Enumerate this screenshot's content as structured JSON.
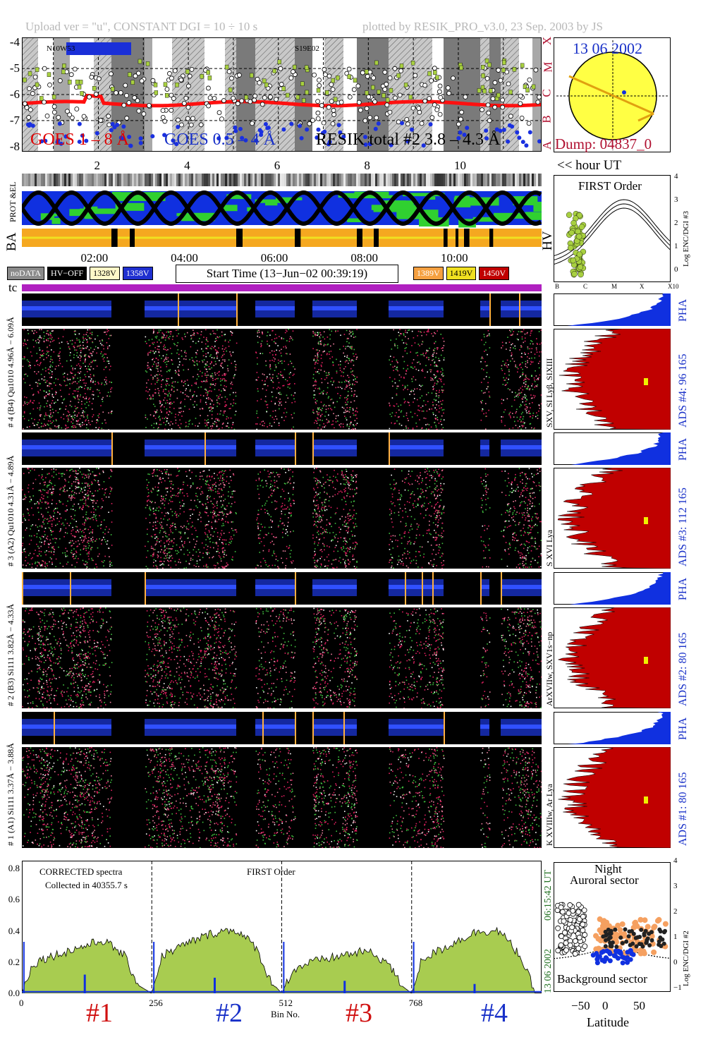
{
  "header": {
    "left": "Upload ver = \"u\", CONSTANT  DGI =  10 ÷  10 s",
    "right": "plotted by RESIK_PRO_v3.0, 23 Sep. 2003 by JS"
  },
  "goes": {
    "y_ticks": [
      "-4",
      "-5",
      "-6",
      "-7",
      "-8"
    ],
    "classes": [
      "X",
      "M",
      "C",
      "B",
      "A"
    ],
    "label_goes18": "GOES 1 – 8 Å",
    "label_goes054": "GOES 0.5 – 4 Å",
    "label_resik": "RESIK total #2  3.8 – 4.3 Å",
    "tag1": "N10W53",
    "tag2": "S19E02",
    "hour_ticks": [
      "2",
      "4",
      "6",
      "8",
      "10"
    ],
    "hour_label": "<< hour UT"
  },
  "sun": {
    "date": "13 06 2002",
    "dump": "Dump: 04837_0"
  },
  "orbit": {
    "left_labels": [
      "BA",
      "PROT &EL"
    ],
    "hv": "HV",
    "time_ticks": [
      "02:00",
      "04:00",
      "06:00",
      "08:00",
      "10:00"
    ]
  },
  "legend": {
    "items": [
      {
        "label": "noDATA",
        "bg": "#8a8a8a",
        "fg": "#fff"
      },
      {
        "label": "HV−OFF",
        "bg": "#000",
        "fg": "#fff"
      },
      {
        "label": "1328V",
        "bg": "#fff8c8",
        "fg": "#000"
      },
      {
        "label": "1358V",
        "bg": "#1f2fd0",
        "fg": "#fff"
      }
    ],
    "start_time": "Start Time (13−Jun−02 00:39:19)",
    "items2": [
      {
        "label": "1389V",
        "bg": "#f5a040",
        "fg": "#fff"
      },
      {
        "label": "1419V",
        "bg": "#f0e020",
        "fg": "#000"
      },
      {
        "label": "1450V",
        "bg": "#c00000",
        "fg": "#fff"
      }
    ],
    "tc": "tc"
  },
  "first_order": {
    "title": "FIRST Order",
    "ylabel": "Log ENC/DGI #3",
    "y_ticks": [
      "4",
      "3",
      "2",
      "1",
      "0"
    ],
    "x_ticks": [
      "B",
      "C",
      "M",
      "X",
      "X10"
    ]
  },
  "channels": [
    {
      "id": 4,
      "left": "# 4 (B4) Qu1010 4.96Å − 6.09Å",
      "line": "SXV, SI Lyβ, SIXIII",
      "ads": "ADS #4:   96 165",
      "pha": "PHA"
    },
    {
      "id": 3,
      "left": "# 3 (A2) Qu1010  4.31Å − 4.89Å",
      "line": "S XVI Lya",
      "ads": "ADS #3:   112 165",
      "pha": "PHA"
    },
    {
      "id": 2,
      "left": "# 2 (B3) Si111  3.82Å − 4.33Å",
      "line": "ArXVIIw, SXV1s−np",
      "ads": "ADS #2:   80 165",
      "pha": "PHA"
    },
    {
      "id": 1,
      "left": "# 1 (A1) Si111  3.37Å − 3.88Å",
      "line": "K XVIIIw, Ar Lya",
      "ads": "ADS #1:   80 165",
      "pha": "PHA"
    }
  ],
  "spectra": {
    "title": "CORRECTED spectra",
    "collected": "Collected in 40355.7 s",
    "order": "FIRST Order",
    "y_ticks": [
      "0.8",
      "0.6",
      "0.4",
      "0.2",
      "0.0"
    ],
    "x_ticks": [
      "0",
      "256",
      "512",
      "768"
    ],
    "xlabel": "Bin No.",
    "channels": [
      "#1",
      "#2",
      "#3",
      "#4"
    ],
    "side_time": "06:15:42 UT",
    "side_date": "13 06 2002"
  },
  "latitude": {
    "night": "Night",
    "auroral": "Auroral sector",
    "background": "Background sector",
    "xlabel": "Latitude",
    "x_ticks": [
      "−50",
      "0",
      "50"
    ],
    "y_ticks": [
      "4",
      "3",
      "2",
      "1",
      "0",
      "−1"
    ],
    "ylabel": "Log ENC/DGI #2"
  },
  "chart_data": [
    {
      "type": "scatter",
      "title": "",
      "ylabel": "",
      "ylim": [
        -8.2,
        -3.8
      ],
      "series": [
        {
          "name": "GOES 1 – 8 Å",
          "approx_level": -6.3
        },
        {
          "name": "GOES 0.5 – 4 Å",
          "approx_level": -7.9
        },
        {
          "name": "RESIK total #2  3.8 – 4.3 Å",
          "approx_level": -6.1
        }
      ],
      "x_ticks": [
        2,
        4,
        6,
        8,
        10
      ]
    },
    {
      "type": "line",
      "title": "CORRECTED spectra",
      "xlabel": "Bin No.",
      "xlim": [
        0,
        1024
      ],
      "ylim": [
        0,
        0.85
      ],
      "x": [
        0,
        20,
        40,
        80,
        120,
        160,
        200,
        230,
        256,
        276,
        300,
        340,
        380,
        420,
        460,
        490,
        512,
        532,
        560,
        600,
        640,
        680,
        720,
        748,
        768,
        788,
        820,
        860,
        900,
        940,
        980,
        1010
      ],
      "values": [
        0.0,
        0.18,
        0.22,
        0.26,
        0.3,
        0.34,
        0.25,
        0.05,
        0.0,
        0.24,
        0.28,
        0.34,
        0.39,
        0.41,
        0.3,
        0.08,
        0.0,
        0.14,
        0.19,
        0.22,
        0.25,
        0.27,
        0.2,
        0.05,
        0.0,
        0.22,
        0.27,
        0.34,
        0.4,
        0.4,
        0.25,
        0.02
      ]
    }
  ]
}
